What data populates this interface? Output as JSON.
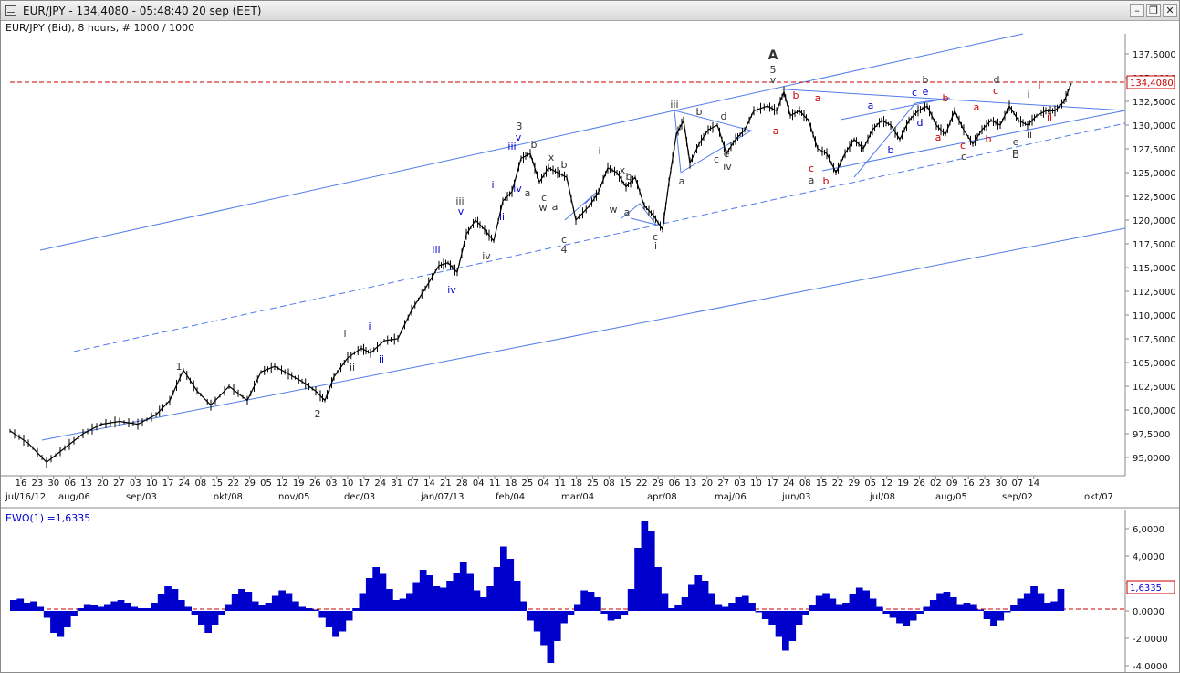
{
  "window": {
    "title": "EUR/JPY - 134,4080 - 05:48:40  20 sep (EET)",
    "buttons": [
      "–",
      "❐",
      "✕"
    ]
  },
  "chart_header": "EUR/JPY (Bid), 8 hours, # 1000 / 1000",
  "price_marker": "134,4080",
  "indicator": {
    "label": "EWO(1) =1,6335",
    "marker": "1,6335",
    "yticks": [
      "6,0000",
      "4,0000",
      "2,0000",
      "0,0000",
      "-2,0000",
      "-4,0000"
    ]
  },
  "colors": {
    "line": "#4f7be8",
    "price": "#000000",
    "marker": "#cc0000",
    "histogram": "#0000cc"
  },
  "chart_data": [
    {
      "type": "line",
      "title": "EUR/JPY (Bid), 8 hours, # 1000 / 1000",
      "yticks": [
        "137,5000",
        "135,0000",
        "132,5000",
        "130,0000",
        "127,5000",
        "125,0000",
        "122,5000",
        "120,0000",
        "117,5000",
        "115,0000",
        "112,5000",
        "110,0000",
        "107,5000",
        "105,0000",
        "102,5000",
        "100,0000",
        "97,5000",
        "95,0000"
      ],
      "ylim": [
        93.0,
        139.5
      ],
      "xticks_days": [
        "16",
        "23",
        "30",
        "06",
        "13",
        "20",
        "27",
        "03",
        "10",
        "17",
        "24",
        "08",
        "15",
        "22",
        "29",
        "05",
        "12",
        "19",
        "26",
        "03",
        "10",
        "17",
        "24",
        "31",
        "07",
        "14",
        "21",
        "28",
        "04",
        "11",
        "18",
        "25",
        "04",
        "11",
        "18",
        "25",
        "08",
        "15",
        "22",
        "29",
        "06",
        "13",
        "20",
        "27",
        "03",
        "10",
        "17",
        "24",
        "08",
        "15",
        "22",
        "29",
        "05",
        "12",
        "19",
        "26",
        "02",
        "09",
        "16",
        "23",
        "30",
        "07",
        "14"
      ],
      "xticks_months": [
        "jul/16/12",
        "aug/06",
        "sep/03",
        "okt/08",
        "nov/05",
        "dec/03",
        "jan/07/13",
        "feb/04",
        "mar/04",
        "apr/08",
        "maj/06",
        "jun/03",
        "jul/08",
        "aug/05",
        "sep/02",
        "okt/07"
      ],
      "last_price": 134.408,
      "price_path": [
        [
          0,
          97.8
        ],
        [
          20,
          96.5
        ],
        [
          40,
          94.5
        ],
        [
          60,
          96.0
        ],
        [
          80,
          97.5
        ],
        [
          100,
          98.5
        ],
        [
          120,
          98.8
        ],
        [
          140,
          98.5
        ],
        [
          160,
          99.5
        ],
        [
          175,
          101.0
        ],
        [
          190,
          104.2
        ],
        [
          205,
          102.0
        ],
        [
          220,
          100.5
        ],
        [
          240,
          102.5
        ],
        [
          260,
          101.0
        ],
        [
          275,
          104.0
        ],
        [
          290,
          104.6
        ],
        [
          305,
          103.8
        ],
        [
          320,
          103.0
        ],
        [
          335,
          102.0
        ],
        [
          345,
          101.0
        ],
        [
          355,
          103.5
        ],
        [
          370,
          105.5
        ],
        [
          385,
          106.5
        ],
        [
          395,
          106.0
        ],
        [
          410,
          107.3
        ],
        [
          425,
          107.5
        ],
        [
          440,
          110.5
        ],
        [
          455,
          112.8
        ],
        [
          470,
          115.2
        ],
        [
          480,
          115.5
        ],
        [
          490,
          114.5
        ],
        [
          500,
          118.5
        ],
        [
          510,
          120.0
        ],
        [
          520,
          119.0
        ],
        [
          530,
          117.8
        ],
        [
          540,
          122.0
        ],
        [
          550,
          123.0
        ],
        [
          560,
          126.5
        ],
        [
          570,
          127.0
        ],
        [
          580,
          124.0
        ],
        [
          590,
          125.5
        ],
        [
          600,
          125.0
        ],
        [
          610,
          124.5
        ],
        [
          620,
          120.0
        ],
        [
          635,
          121.5
        ],
        [
          645,
          123.0
        ],
        [
          655,
          125.5
        ],
        [
          665,
          125.0
        ],
        [
          675,
          123.5
        ],
        [
          685,
          124.5
        ],
        [
          695,
          121.5
        ],
        [
          705,
          120.5
        ],
        [
          715,
          119.0
        ],
        [
          722,
          124.0
        ],
        [
          730,
          129.0
        ],
        [
          738,
          130.5
        ],
        [
          745,
          126.0
        ],
        [
          755,
          128.0
        ],
        [
          765,
          129.5
        ],
        [
          775,
          130.0
        ],
        [
          785,
          127.0
        ],
        [
          795,
          128.5
        ],
        [
          805,
          129.5
        ],
        [
          815,
          131.5
        ],
        [
          830,
          132.0
        ],
        [
          840,
          131.5
        ],
        [
          848,
          133.5
        ],
        [
          855,
          131.0
        ],
        [
          865,
          131.5
        ],
        [
          875,
          130.5
        ],
        [
          885,
          127.5
        ],
        [
          895,
          127.0
        ],
        [
          905,
          125.0
        ],
        [
          915,
          127.0
        ],
        [
          925,
          128.5
        ],
        [
          935,
          127.5
        ],
        [
          945,
          129.5
        ],
        [
          955,
          130.5
        ],
        [
          965,
          130.0
        ],
        [
          975,
          128.5
        ],
        [
          985,
          130.5
        ],
        [
          995,
          131.5
        ],
        [
          1005,
          132.0
        ],
        [
          1015,
          130.0
        ],
        [
          1025,
          129.0
        ],
        [
          1035,
          131.5
        ],
        [
          1045,
          129.5
        ],
        [
          1055,
          128.0
        ],
        [
          1065,
          129.5
        ],
        [
          1075,
          130.5
        ],
        [
          1085,
          130.0
        ],
        [
          1095,
          132.0
        ],
        [
          1105,
          130.5
        ],
        [
          1115,
          130.0
        ],
        [
          1125,
          131.0
        ],
        [
          1135,
          131.5
        ],
        [
          1145,
          131.5
        ],
        [
          1155,
          132.5
        ],
        [
          1163,
          134.4
        ]
      ]
    },
    {
      "type": "bar",
      "title": "EWO(1) =1,6335",
      "ylim": [
        -4.4,
        6.8
      ],
      "last_value": 1.6335,
      "values": [
        0.8,
        0.9,
        0.6,
        0.7,
        0.3,
        -0.5,
        -1.6,
        -1.9,
        -1.2,
        -0.4,
        0.2,
        0.5,
        0.4,
        0.3,
        0.5,
        0.7,
        0.8,
        0.6,
        0.3,
        0.2,
        0.2,
        0.6,
        1.2,
        1.8,
        1.6,
        0.8,
        0.3,
        -0.3,
        -1.0,
        -1.6,
        -1.0,
        -0.3,
        0.5,
        1.2,
        1.6,
        1.4,
        0.7,
        0.4,
        0.6,
        1.1,
        1.5,
        1.3,
        0.7,
        0.3,
        0.2,
        0.1,
        -0.5,
        -1.2,
        -1.9,
        -1.5,
        -0.7,
        0.2,
        1.3,
        2.4,
        3.2,
        2.7,
        1.6,
        0.8,
        0.9,
        1.3,
        2.1,
        3.0,
        2.6,
        1.8,
        1.7,
        2.2,
        2.8,
        3.6,
        2.7,
        1.5,
        1.0,
        1.8,
        3.2,
        4.7,
        3.8,
        2.2,
        0.7,
        -0.7,
        -1.5,
        -2.5,
        -3.8,
        -2.2,
        -0.9,
        -0.3,
        0.5,
        1.5,
        1.4,
        1.0,
        -0.2,
        -0.7,
        -0.6,
        -0.3,
        1.6,
        4.6,
        6.6,
        5.8,
        3.2,
        1.3,
        0.2,
        0.4,
        1.0,
        1.9,
        2.6,
        2.2,
        1.3,
        0.5,
        0.3,
        0.6,
        1.0,
        1.1,
        0.6,
        -0.1,
        -0.6,
        -1.0,
        -1.9,
        -2.9,
        -2.2,
        -1.0,
        -0.3,
        0.4,
        1.1,
        1.3,
        0.9,
        0.5,
        0.6,
        1.2,
        1.7,
        1.5,
        0.9,
        0.3,
        -0.2,
        -0.5,
        -0.9,
        -1.1,
        -0.7,
        -0.2,
        0.3,
        0.8,
        1.3,
        1.4,
        1.0,
        0.5,
        0.6,
        0.5,
        0.1,
        -0.6,
        -1.1,
        -0.7,
        -0.1,
        0.4,
        0.9,
        1.3,
        1.8,
        1.3,
        0.6,
        0.7,
        1.6
      ]
    }
  ],
  "wave_labels": [
    {
      "t": "A",
      "c": "#333333",
      "b": 1
    },
    {
      "t": "5",
      "c": "#333333"
    },
    {
      "t": "v",
      "c": "#333333"
    },
    {
      "t": "1",
      "c": "#333333"
    },
    {
      "t": "2",
      "c": "#333333"
    },
    {
      "t": "3",
      "c": "#333333"
    },
    {
      "t": "4",
      "c": "#333333"
    },
    {
      "t": "i",
      "c": "#333333"
    },
    {
      "t": "ii",
      "c": "#333333"
    },
    {
      "t": "i",
      "c": "#0000cc"
    },
    {
      "t": "ii",
      "c": "#0000cc"
    },
    {
      "t": "iii",
      "c": "#0000cc"
    },
    {
      "t": "iv",
      "c": "#0000cc"
    },
    {
      "t": "iii",
      "c": "#333333"
    },
    {
      "t": "v",
      "c": "#0000cc"
    },
    {
      "t": "iv",
      "c": "#333333"
    },
    {
      "t": "i",
      "c": "#0000cc"
    },
    {
      "t": "ii",
      "c": "#0000cc"
    },
    {
      "t": "iii",
      "c": "#0000cc"
    },
    {
      "t": "v",
      "c": "#0000cc"
    },
    {
      "t": "iv",
      "c": "#0000cc"
    },
    {
      "t": "b",
      "c": "#333333"
    },
    {
      "t": "a",
      "c": "#333333"
    },
    {
      "t": "c",
      "c": "#333333"
    },
    {
      "t": "w",
      "c": "#333333"
    },
    {
      "t": "a",
      "c": "#333333"
    },
    {
      "t": "x",
      "c": "#333333"
    },
    {
      "t": "b",
      "c": "#333333"
    },
    {
      "t": "c",
      "c": "#333333"
    },
    {
      "t": "i",
      "c": "#333333"
    },
    {
      "t": "x",
      "c": "#333333"
    },
    {
      "t": "b",
      "c": "#333333"
    },
    {
      "t": "w",
      "c": "#333333"
    },
    {
      "t": "a",
      "c": "#333333"
    },
    {
      "t": "c",
      "c": "#333333"
    },
    {
      "t": "ii",
      "c": "#333333"
    },
    {
      "t": "iii",
      "c": "#333333"
    },
    {
      "t": "b",
      "c": "#333333"
    },
    {
      "t": "d",
      "c": "#333333"
    },
    {
      "t": "a",
      "c": "#333333"
    },
    {
      "t": "c",
      "c": "#333333"
    },
    {
      "t": "e",
      "c": "#333333"
    },
    {
      "t": "iv",
      "c": "#333333"
    },
    {
      "t": "b",
      "c": "#cc0000"
    },
    {
      "t": "a",
      "c": "#cc0000"
    },
    {
      "t": "a",
      "c": "#cc0000"
    },
    {
      "t": "c",
      "c": "#cc0000"
    },
    {
      "t": "a",
      "c": "#333333"
    },
    {
      "t": "b",
      "c": "#cc0000"
    },
    {
      "t": "a",
      "c": "#0000cc"
    },
    {
      "t": "b",
      "c": "#0000cc"
    },
    {
      "t": "c",
      "c": "#0000cc"
    },
    {
      "t": "e",
      "c": "#0000cc"
    },
    {
      "t": "b",
      "c": "#333333"
    },
    {
      "t": "d",
      "c": "#0000cc"
    },
    {
      "t": "b",
      "c": "#cc0000"
    },
    {
      "t": "a",
      "c": "#cc0000"
    },
    {
      "t": "a",
      "c": "#cc0000"
    },
    {
      "t": "c",
      "c": "#cc0000"
    },
    {
      "t": "c",
      "c": "#333333"
    },
    {
      "t": "b",
      "c": "#cc0000"
    },
    {
      "t": "d",
      "c": "#333333"
    },
    {
      "t": "c",
      "c": "#cc0000"
    },
    {
      "t": "e",
      "c": "#333333"
    },
    {
      "t": "B",
      "c": "#333333"
    },
    {
      "t": "i",
      "c": "#333333"
    },
    {
      "t": "ii",
      "c": "#333333"
    },
    {
      "t": "i",
      "c": "#cc0000"
    },
    {
      "t": "ii",
      "c": "#cc0000"
    }
  ]
}
